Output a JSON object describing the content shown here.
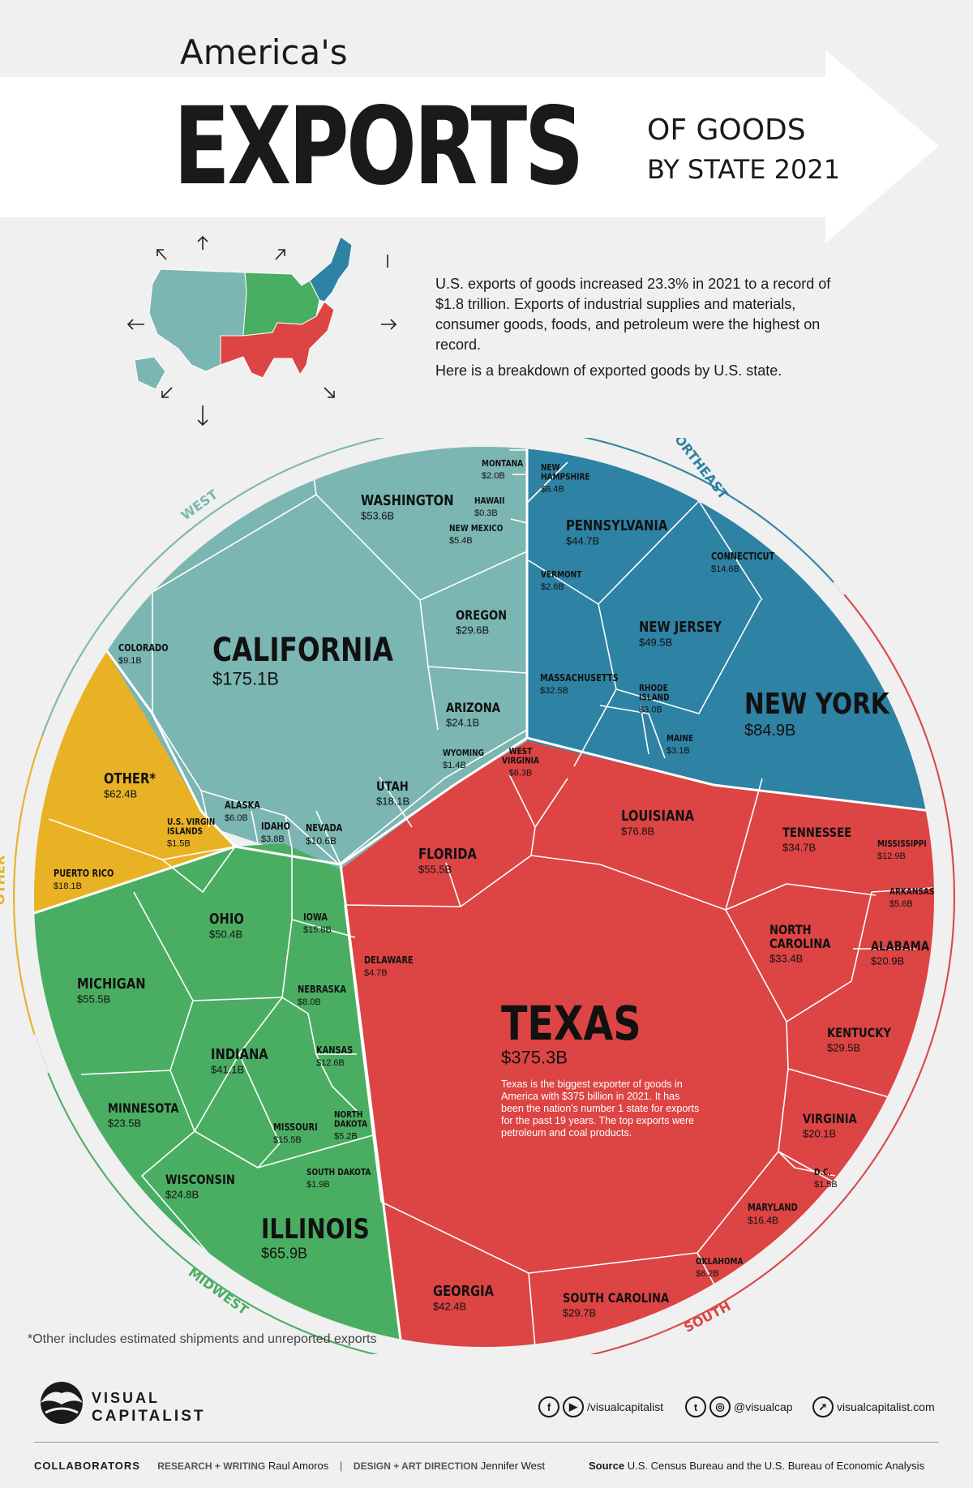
{
  "header": {
    "title_small": "America's",
    "title_big": "EXPORTS",
    "subtitle_1": "OF GOODS",
    "subtitle_2": "BY STATE 2021"
  },
  "intro": {
    "paragraph_1": "U.S. exports of goods increased 23.3% in 2021 to a record of $1.8 trillion. Exports of industrial supplies and materials, consumer goods, foods, and petroleum were the highest on record.",
    "paragraph_2": "Here is a breakdown of exported goods by U.S. state."
  },
  "colors": {
    "west": "#7bb6b3",
    "northeast": "#2e82a4",
    "south": "#dd4444",
    "midwest": "#4aae62",
    "other": "#e9b124"
  },
  "chart_data": {
    "type": "voronoi-treemap",
    "unit": "$ billions",
    "regions": [
      {
        "name": "WEST",
        "states": [
          {
            "name": "CALIFORNIA",
            "label": "$175.1B",
            "value": 175.1
          },
          {
            "name": "WASHINGTON",
            "label": "$53.6B",
            "value": 53.6
          },
          {
            "name": "OREGON",
            "label": "$29.6B",
            "value": 29.6
          },
          {
            "name": "ARIZONA",
            "label": "$24.1B",
            "value": 24.1
          },
          {
            "name": "UTAH",
            "label": "$18.1B",
            "value": 18.1
          },
          {
            "name": "NEVADA",
            "label": "$10.6B",
            "value": 10.6
          },
          {
            "name": "COLORADO",
            "label": "$9.1B",
            "value": 9.1
          },
          {
            "name": "ALASKA",
            "label": "$6.0B",
            "value": 6.0
          },
          {
            "name": "NEW MEXICO",
            "label": "$5.4B",
            "value": 5.4
          },
          {
            "name": "IDAHO",
            "label": "$3.8B",
            "value": 3.8
          },
          {
            "name": "MONTANA",
            "label": "$2.0B",
            "value": 2.0
          },
          {
            "name": "WYOMING",
            "label": "$1.4B",
            "value": 1.4
          },
          {
            "name": "HAWAII",
            "label": "$0.3B",
            "value": 0.3
          }
        ]
      },
      {
        "name": "NORTHEAST",
        "states": [
          {
            "name": "NEW YORK",
            "label": "$84.9B",
            "value": 84.9
          },
          {
            "name": "NEW JERSEY",
            "label": "$49.5B",
            "value": 49.5
          },
          {
            "name": "PENNSYLVANIA",
            "label": "$44.7B",
            "value": 44.7
          },
          {
            "name": "MASSACHUSETTS",
            "label": "$32.5B",
            "value": 32.5
          },
          {
            "name": "CONNECTICUT",
            "label": "$14.6B",
            "value": 14.6
          },
          {
            "name": "NEW HAMPSHIRE",
            "label": "$6.4B",
            "value": 6.4
          },
          {
            "name": "MAINE",
            "label": "$3.1B",
            "value": 3.1
          },
          {
            "name": "RHODE ISLAND",
            "label": "$3.0B",
            "value": 3.0
          },
          {
            "name": "VERMONT",
            "label": "$2.6B",
            "value": 2.6
          }
        ]
      },
      {
        "name": "SOUTH",
        "states": [
          {
            "name": "TEXAS",
            "label": "$375.3B",
            "value": 375.3
          },
          {
            "name": "LOUISIANA",
            "label": "$76.8B",
            "value": 76.8
          },
          {
            "name": "FLORIDA",
            "label": "$55.5B",
            "value": 55.5
          },
          {
            "name": "GEORGIA",
            "label": "$42.4B",
            "value": 42.4
          },
          {
            "name": "TENNESSEE",
            "label": "$34.7B",
            "value": 34.7
          },
          {
            "name": "NORTH CAROLINA",
            "label": "$33.4B",
            "value": 33.4
          },
          {
            "name": "SOUTH CAROLINA",
            "label": "$29.7B",
            "value": 29.7
          },
          {
            "name": "KENTUCKY",
            "label": "$29.5B",
            "value": 29.5
          },
          {
            "name": "ALABAMA",
            "label": "$20.9B",
            "value": 20.9
          },
          {
            "name": "VIRGINIA",
            "label": "$20.1B",
            "value": 20.1
          },
          {
            "name": "MARYLAND",
            "label": "$16.4B",
            "value": 16.4
          },
          {
            "name": "MISSISSIPPI",
            "label": "$12.9B",
            "value": 12.9
          },
          {
            "name": "WEST VIRGINIA",
            "label": "$6.3B",
            "value": 6.3
          },
          {
            "name": "OKLAHOMA",
            "label": "$6.2B",
            "value": 6.2
          },
          {
            "name": "ARKANSAS",
            "label": "$5.6B",
            "value": 5.6
          },
          {
            "name": "DELAWARE",
            "label": "$4.7B",
            "value": 4.7
          },
          {
            "name": "D.C.",
            "label": "$1.5B",
            "value": 1.5
          }
        ]
      },
      {
        "name": "MIDWEST",
        "states": [
          {
            "name": "ILLINOIS",
            "label": "$65.9B",
            "value": 65.9
          },
          {
            "name": "MICHIGAN",
            "label": "$55.5B",
            "value": 55.5
          },
          {
            "name": "OHIO",
            "label": "$50.4B",
            "value": 50.4
          },
          {
            "name": "INDIANA",
            "label": "$41.1B",
            "value": 41.1
          },
          {
            "name": "WISCONSIN",
            "label": "$24.8B",
            "value": 24.8
          },
          {
            "name": "MINNESOTA",
            "label": "$23.5B",
            "value": 23.5
          },
          {
            "name": "IOWA",
            "label": "$15.8B",
            "value": 15.8
          },
          {
            "name": "MISSOURI",
            "label": "$15.5B",
            "value": 15.5
          },
          {
            "name": "KANSAS",
            "label": "$12.6B",
            "value": 12.6
          },
          {
            "name": "NEBRASKA",
            "label": "$8.0B",
            "value": 8.0
          },
          {
            "name": "NORTH DAKOTA",
            "label": "$5.2B",
            "value": 5.2
          },
          {
            "name": "SOUTH DAKOTA",
            "label": "$1.9B",
            "value": 1.9
          }
        ]
      },
      {
        "name": "OTHER",
        "states": [
          {
            "name": "OTHER*",
            "label": "$62.4B",
            "value": 62.4
          },
          {
            "name": "PUERTO RICO",
            "label": "$18.1B",
            "value": 18.1
          },
          {
            "name": "U.S. VIRGIN ISLANDS",
            "label": "$1.5B",
            "value": 1.5
          }
        ]
      }
    ],
    "annotation": "Texas is the biggest exporter of goods in America with $375 billion in 2021. It has been the nation's number 1 state for exports for the past 19 years. The top exports were petroleum and coal products."
  },
  "footnote": "*Other includes estimated shipments and unreported exports",
  "brand": {
    "line1": "VISUAL",
    "line2": "CAPITALIST"
  },
  "social": {
    "facebook_youtube": "/visualcapitalist",
    "twitter_instagram": "@visualcap",
    "website": "visualcapitalist.com"
  },
  "credits": {
    "collaborators": "COLLABORATORS",
    "research_label": "RESEARCH + WRITING",
    "research_name": "Raul Amoros",
    "design_label": "DESIGN + ART DIRECTION",
    "design_name": "Jennifer West",
    "source_label": "Source",
    "source_text": "U.S. Census Bureau and the U.S. Bureau of Economic Analysis"
  }
}
